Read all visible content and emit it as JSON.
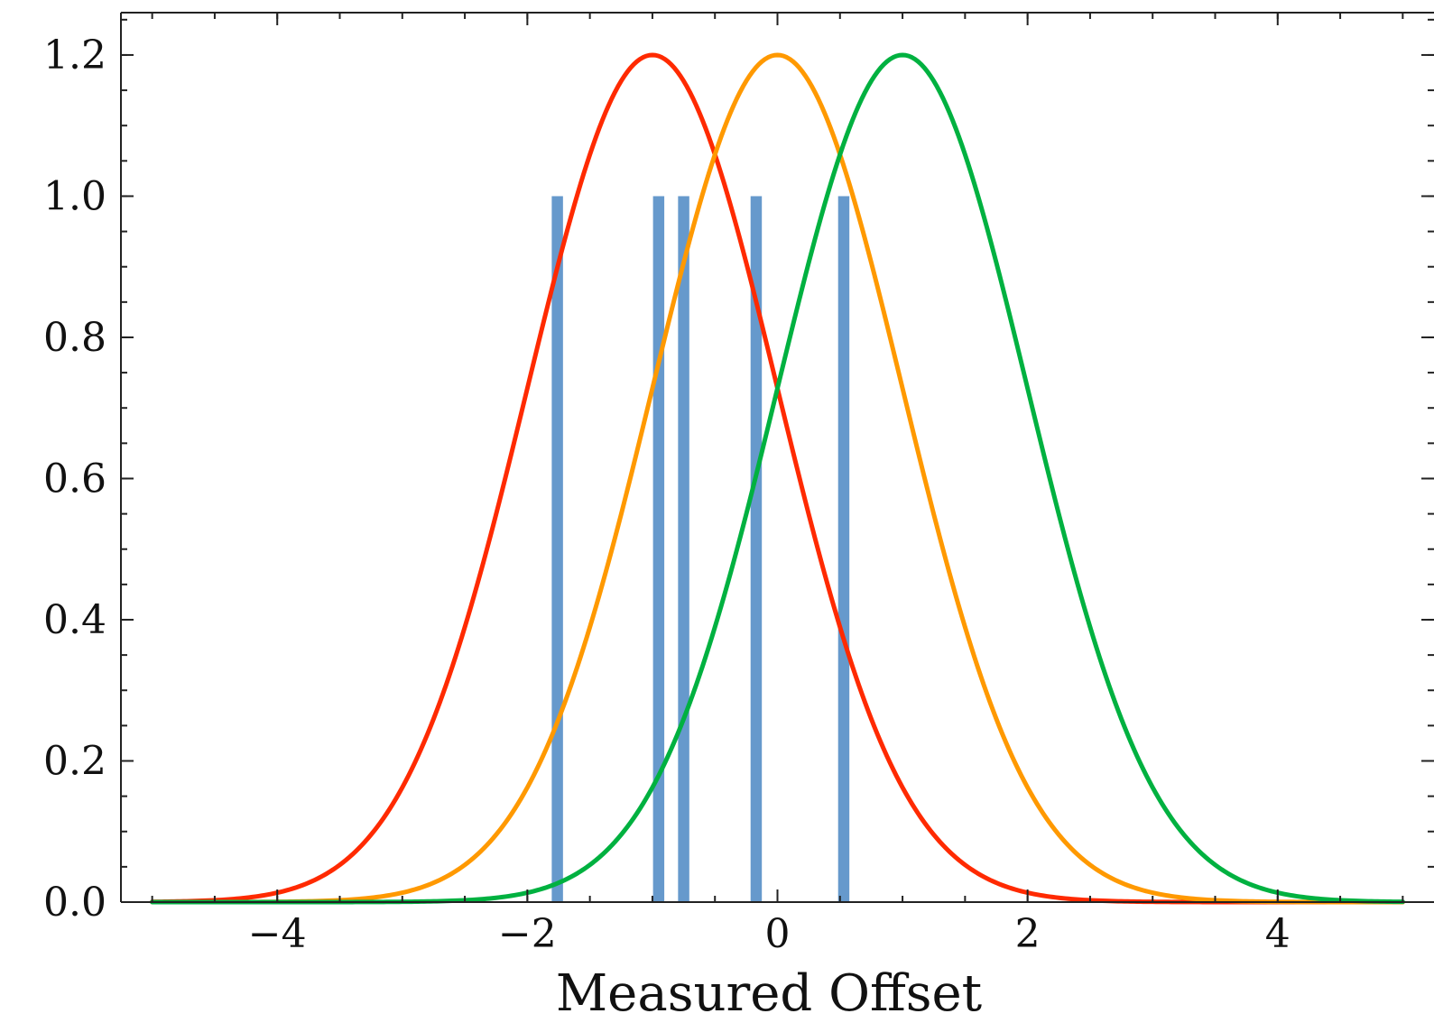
{
  "chart_data": {
    "type": "line",
    "title": "",
    "xlabel": "Measured Offset",
    "ylabel": "",
    "xlim": [
      -5.25,
      5.25
    ],
    "ylim": [
      0,
      1.26
    ],
    "grid": false,
    "legend": "none",
    "x_ticks": [
      -4,
      -2,
      0,
      2,
      4
    ],
    "x_tick_labels": [
      "−4",
      "−2",
      "0",
      "2",
      "4"
    ],
    "y_ticks": [
      0,
      0.2,
      0.4,
      0.6,
      0.8,
      1.0,
      1.2
    ],
    "y_tick_labels": [
      "0.0",
      "0.2",
      "0.4",
      "0.6",
      "0.8",
      "1.0",
      "1.2"
    ],
    "x_minor_step": 0.5,
    "y_minor_step": 0.05,
    "series": [
      {
        "type": "line",
        "color": "#ff2a00",
        "peak": 1.2,
        "center": -1.0,
        "sigma": 1.0,
        "x_range": [
          -5,
          5
        ]
      },
      {
        "type": "line",
        "color": "#ff9900",
        "peak": 1.2,
        "center": 0.0,
        "sigma": 1.0,
        "x_range": [
          -5,
          5
        ]
      },
      {
        "type": "line",
        "color": "#00b140",
        "peak": 1.2,
        "center": 1.0,
        "sigma": 1.0,
        "x_range": [
          -5,
          5
        ]
      }
    ],
    "bars": {
      "color": "#6699cc",
      "width": 0.09,
      "x": [
        -1.76,
        -0.95,
        -0.75,
        -0.17,
        0.53
      ],
      "values": [
        1.0,
        1.0,
        1.0,
        1.0,
        1.0
      ]
    }
  }
}
